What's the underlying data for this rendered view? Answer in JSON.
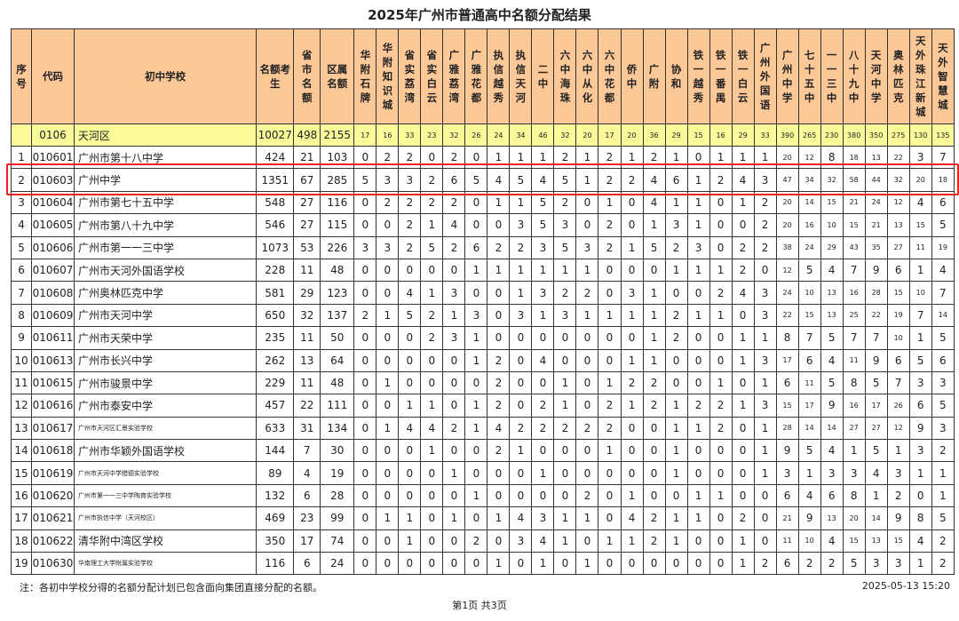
{
  "title": "2025年广州市普通高中名额分配结果",
  "columns": [
    "序号",
    "代码",
    "初中学校",
    "名额考生",
    "省市名额",
    "区属名额",
    "华附石牌",
    "华附知识城",
    "省实荔湾",
    "省实白云",
    "广雅荔湾",
    "广雅花都",
    "执信越秀",
    "执信天河",
    "二中",
    "六中海珠",
    "六中从化",
    "六中花都",
    "侨中",
    "广附",
    "协和",
    "铁一越秀",
    "铁一番禺",
    "铁一白云",
    "广州外国语",
    "广州中学",
    "七十五中",
    "一一三中",
    "八十九中",
    "天河中学",
    "奥林匹克",
    "天外珠江新城",
    "天外智慧城"
  ],
  "district": {
    "seq": "",
    "code": "0106",
    "name": "天河区",
    "values": [
      10027,
      498,
      2155,
      17,
      16,
      33,
      23,
      32,
      26,
      24,
      34,
      46,
      32,
      20,
      17,
      20,
      36,
      29,
      15,
      16,
      29,
      33,
      390,
      265,
      230,
      380,
      350,
      275,
      130,
      135
    ]
  },
  "rows": [
    {
      "seq": "1",
      "code": "010601",
      "school": "广州市第十八中学",
      "values": [
        424,
        21,
        103,
        0,
        2,
        2,
        0,
        2,
        0,
        1,
        1,
        1,
        2,
        1,
        2,
        1,
        2,
        1,
        0,
        1,
        1,
        1,
        20,
        12,
        8,
        18,
        13,
        22,
        3,
        7
      ]
    },
    {
      "seq": "2",
      "code": "010603",
      "school": "广州中学",
      "values": [
        1351,
        67,
        285,
        5,
        3,
        3,
        2,
        6,
        5,
        4,
        5,
        4,
        5,
        1,
        2,
        2,
        4,
        6,
        1,
        2,
        4,
        3,
        47,
        34,
        32,
        58,
        44,
        32,
        20,
        18
      ]
    },
    {
      "seq": "3",
      "code": "010604",
      "school": "广州市第七十五中学",
      "values": [
        548,
        27,
        116,
        0,
        2,
        2,
        2,
        2,
        0,
        1,
        1,
        5,
        2,
        0,
        1,
        0,
        4,
        1,
        1,
        0,
        1,
        2,
        20,
        14,
        15,
        21,
        24,
        12,
        4,
        6
      ]
    },
    {
      "seq": "4",
      "code": "010605",
      "school": "广州市第八十九中学",
      "values": [
        546,
        27,
        115,
        0,
        0,
        2,
        1,
        4,
        0,
        0,
        3,
        5,
        3,
        0,
        2,
        0,
        1,
        3,
        1,
        0,
        0,
        2,
        20,
        16,
        10,
        15,
        21,
        13,
        15,
        5
      ]
    },
    {
      "seq": "5",
      "code": "010606",
      "school": "广州市第一一三中学",
      "values": [
        1073,
        53,
        226,
        3,
        3,
        2,
        5,
        2,
        6,
        2,
        2,
        3,
        5,
        3,
        2,
        1,
        5,
        2,
        3,
        0,
        2,
        2,
        38,
        24,
        29,
        43,
        35,
        27,
        11,
        19
      ]
    },
    {
      "seq": "6",
      "code": "010607",
      "school": "广州市天河外国语学校",
      "values": [
        228,
        11,
        48,
        0,
        0,
        0,
        0,
        0,
        1,
        1,
        1,
        1,
        1,
        1,
        0,
        0,
        0,
        1,
        1,
        1,
        2,
        0,
        12,
        5,
        4,
        7,
        9,
        6,
        1,
        4
      ]
    },
    {
      "seq": "7",
      "code": "010608",
      "school": "广州奥林匹克中学",
      "values": [
        581,
        29,
        123,
        0,
        0,
        4,
        1,
        3,
        0,
        0,
        1,
        3,
        2,
        2,
        0,
        3,
        1,
        0,
        0,
        2,
        4,
        3,
        24,
        10,
        13,
        16,
        28,
        15,
        10,
        7
      ]
    },
    {
      "seq": "8",
      "code": "010609",
      "school": "广州市天河中学",
      "values": [
        650,
        32,
        137,
        2,
        1,
        5,
        2,
        1,
        3,
        0,
        3,
        1,
        3,
        1,
        1,
        1,
        1,
        2,
        1,
        1,
        0,
        3,
        22,
        15,
        13,
        25,
        22,
        19,
        7,
        14
      ]
    },
    {
      "seq": "9",
      "code": "010611",
      "school": "广州市天荣中学",
      "values": [
        235,
        11,
        50,
        0,
        0,
        0,
        2,
        3,
        1,
        0,
        0,
        0,
        0,
        0,
        0,
        0,
        1,
        2,
        0,
        0,
        1,
        1,
        8,
        7,
        5,
        7,
        7,
        10,
        1,
        5
      ]
    },
    {
      "seq": "10",
      "code": "010613",
      "school": "广州市长兴中学",
      "values": [
        262,
        13,
        64,
        0,
        0,
        0,
        0,
        0,
        1,
        2,
        0,
        4,
        0,
        0,
        0,
        1,
        1,
        0,
        0,
        0,
        1,
        3,
        17,
        6,
        4,
        11,
        9,
        6,
        5,
        6
      ]
    },
    {
      "seq": "11",
      "code": "010615",
      "school": "广州市骏景中学",
      "values": [
        229,
        11,
        48,
        0,
        1,
        0,
        0,
        0,
        0,
        2,
        0,
        0,
        1,
        0,
        1,
        2,
        2,
        0,
        0,
        1,
        0,
        1,
        6,
        11,
        5,
        8,
        5,
        7,
        3,
        3
      ]
    },
    {
      "seq": "12",
      "code": "010616",
      "school": "广州市泰安中学",
      "values": [
        457,
        22,
        111,
        0,
        0,
        1,
        1,
        0,
        1,
        2,
        0,
        2,
        1,
        0,
        2,
        1,
        2,
        1,
        2,
        2,
        1,
        3,
        15,
        17,
        9,
        16,
        17,
        26,
        6,
        5
      ]
    },
    {
      "seq": "13",
      "code": "010617",
      "school": "广州市天河区汇景实验学校",
      "values": [
        633,
        31,
        134,
        0,
        1,
        4,
        4,
        2,
        1,
        4,
        2,
        2,
        2,
        2,
        2,
        0,
        0,
        1,
        1,
        2,
        0,
        1,
        28,
        14,
        14,
        27,
        27,
        12,
        9,
        3
      ]
    },
    {
      "seq": "14",
      "code": "010618",
      "school": "广州市华颖外国语学校",
      "values": [
        144,
        7,
        30,
        0,
        0,
        0,
        1,
        0,
        0,
        2,
        1,
        0,
        0,
        0,
        1,
        0,
        0,
        1,
        0,
        0,
        0,
        1,
        9,
        5,
        4,
        1,
        5,
        1,
        3,
        2
      ]
    },
    {
      "seq": "15",
      "code": "010619",
      "school": "广州市天河中学猎德实验学校",
      "values": [
        89,
        4,
        19,
        0,
        0,
        0,
        0,
        1,
        0,
        0,
        0,
        1,
        0,
        0,
        0,
        0,
        0,
        1,
        0,
        0,
        0,
        1,
        3,
        1,
        3,
        3,
        4,
        3,
        1,
        1
      ]
    },
    {
      "seq": "16",
      "code": "010620",
      "school": "广州市第一一三中学陶育实验学校",
      "values": [
        132,
        6,
        28,
        0,
        0,
        0,
        0,
        0,
        1,
        0,
        0,
        0,
        0,
        2,
        0,
        1,
        0,
        0,
        1,
        1,
        0,
        0,
        6,
        4,
        6,
        8,
        1,
        2,
        0,
        1
      ]
    },
    {
      "seq": "17",
      "code": "010621",
      "school": "广州市执信中学（天河校区）",
      "values": [
        469,
        23,
        99,
        0,
        1,
        1,
        0,
        1,
        0,
        1,
        4,
        3,
        1,
        1,
        0,
        4,
        2,
        1,
        1,
        0,
        2,
        0,
        21,
        9,
        13,
        20,
        14,
        9,
        8,
        5
      ]
    },
    {
      "seq": "18",
      "code": "010622",
      "school": "清华附中湾区学校",
      "values": [
        350,
        17,
        74,
        0,
        0,
        1,
        0,
        0,
        2,
        0,
        3,
        4,
        1,
        0,
        1,
        1,
        2,
        1,
        0,
        0,
        1,
        0,
        11,
        10,
        4,
        15,
        13,
        15,
        4,
        2
      ]
    },
    {
      "seq": "19",
      "code": "010630",
      "school": "华南理工大学附属实验学校",
      "values": [
        116,
        6,
        24,
        0,
        0,
        0,
        0,
        0,
        0,
        1,
        0,
        1,
        0,
        1,
        0,
        0,
        0,
        0,
        0,
        0,
        1,
        2,
        6,
        2,
        2,
        5,
        3,
        3,
        1,
        2
      ]
    }
  ],
  "highlighted_row": "2",
  "highlight_color": "#ee2222",
  "header_color": "#fdc898",
  "district_row_color": "#fafa9a",
  "footer": {
    "note": "注：各初中学校分得的名额分配计划已包含面向集团直接分配的名额。",
    "timestamp": "2025-05-13 15:20",
    "page": "第1页 共3页"
  }
}
